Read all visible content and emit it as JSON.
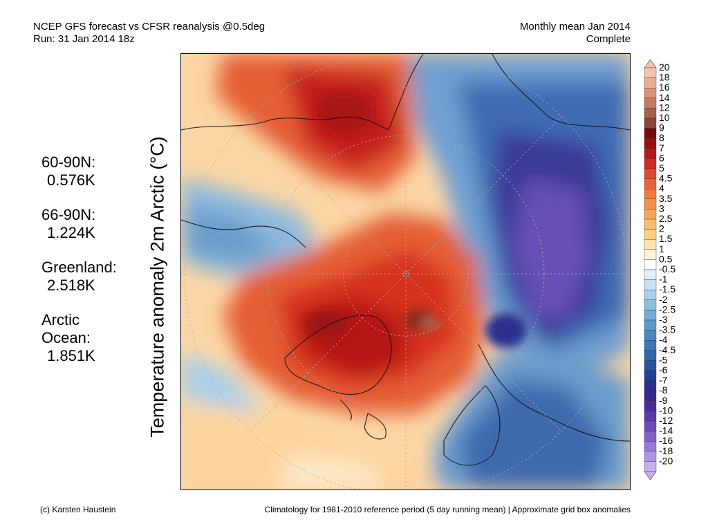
{
  "header": {
    "title_line1": "NCEP GFS forecast vs CFSR reanalysis @0.5deg",
    "title_line2": "Run: 31 Jan 2014 18z",
    "right_line1": "Monthly mean Jan 2014",
    "right_line2": "Complete"
  },
  "stats": [
    {
      "label": "60-90N:",
      "value": "0.576K"
    },
    {
      "label": "66-90N:",
      "value": "1.224K"
    },
    {
      "label": "Greenland:",
      "value": "2.518K"
    },
    {
      "label": "Arctic Ocean:",
      "value": "1.851K"
    }
  ],
  "axis_title": "Temperature anomaly 2m Arctic (°C)",
  "colorbar": {
    "levels": [
      "20",
      "18",
      "16",
      "14",
      "12",
      "10",
      "9",
      "8",
      "7",
      "6",
      "5",
      "4.5",
      "4",
      "3.5",
      "3",
      "2.5",
      "2",
      "1.5",
      "1",
      "0.5",
      "-0.5",
      "-1",
      "-1.5",
      "-2",
      "-2.5",
      "-3",
      "-3.5",
      "-4",
      "-4.5",
      "-5",
      "-6",
      "-7",
      "-8",
      "-9",
      "-10",
      "-12",
      "-14",
      "-16",
      "-18",
      "-20"
    ],
    "colors": [
      "#f5c4b0",
      "#e8ad95",
      "#d9937a",
      "#c47a63",
      "#a8604f",
      "#8a4639",
      "#7a0a0a",
      "#9a0f0f",
      "#b81818",
      "#d02a22",
      "#e04a30",
      "#ea6238",
      "#f07a40",
      "#f5904a",
      "#f8a85a",
      "#fbbc6e",
      "#fdd088",
      "#fde2a8",
      "#fdf2d4",
      "#ffffff",
      "#e2eef8",
      "#c8e0f0",
      "#acd0e8",
      "#8fbedf",
      "#74acd6",
      "#5d9acc",
      "#4a88c2",
      "#3b76b8",
      "#2e65ae",
      "#2556a4",
      "#243f98",
      "#2a2e8c",
      "#36258a",
      "#4a2c98",
      "#5c3aa8",
      "#6e4cb8",
      "#8260c8",
      "#9878d6",
      "#b094e2",
      "#c8b0ec"
    ]
  },
  "footer": {
    "left": "(c) Karsten Haustein",
    "right": "Climatology for 1981-2010 reference period (5 day running mean) | Approximate grid box anomalies"
  }
}
